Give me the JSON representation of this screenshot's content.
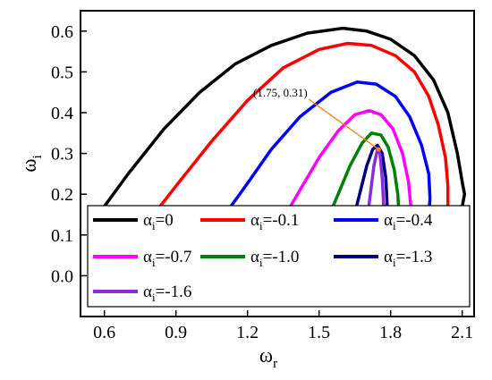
{
  "chart_data": {
    "type": "line",
    "xlabel": {
      "symbol": "ω",
      "sub": "r"
    },
    "ylabel": {
      "symbol": "ω",
      "sub": "i"
    },
    "xlim": [
      0.5,
      2.15
    ],
    "ylim": [
      -0.1,
      0.65
    ],
    "x_ticks": [
      "0.6",
      "0.9",
      "1.2",
      "1.5",
      "1.8",
      "2.1"
    ],
    "y_ticks": [
      "0.0",
      "0.1",
      "0.2",
      "0.3",
      "0.4",
      "0.5",
      "0.6"
    ],
    "grid": false,
    "legend_position": "bottom",
    "annotation": {
      "text": "(1.75, 0.31)",
      "point": [
        1.75,
        0.31
      ]
    },
    "series": [
      {
        "name": "α_i=0",
        "label_symbol": "α",
        "label_sub": "i",
        "label_value": "=0",
        "color": "#000000",
        "points": [
          [
            0.55,
            0.13
          ],
          [
            0.7,
            0.25
          ],
          [
            0.85,
            0.36
          ],
          [
            1.0,
            0.45
          ],
          [
            1.15,
            0.52
          ],
          [
            1.3,
            0.565
          ],
          [
            1.45,
            0.595
          ],
          [
            1.6,
            0.607
          ],
          [
            1.7,
            0.6
          ],
          [
            1.8,
            0.58
          ],
          [
            1.9,
            0.54
          ],
          [
            1.98,
            0.48
          ],
          [
            2.04,
            0.4
          ],
          [
            2.08,
            0.3
          ],
          [
            2.1,
            0.23
          ],
          [
            2.11,
            0.2
          ],
          [
            2.1,
            0.17
          ],
          [
            2.09,
            0.13
          ]
        ]
      },
      {
        "name": "α_i=-0.1",
        "label_symbol": "α",
        "label_sub": "i",
        "label_value": "=-0.1",
        "color": "#ff0000",
        "points": [
          [
            0.78,
            0.13
          ],
          [
            0.9,
            0.22
          ],
          [
            1.05,
            0.33
          ],
          [
            1.2,
            0.43
          ],
          [
            1.35,
            0.51
          ],
          [
            1.5,
            0.555
          ],
          [
            1.62,
            0.57
          ],
          [
            1.72,
            0.565
          ],
          [
            1.82,
            0.54
          ],
          [
            1.9,
            0.5
          ],
          [
            1.96,
            0.44
          ],
          [
            2.0,
            0.37
          ],
          [
            2.03,
            0.29
          ],
          [
            2.04,
            0.22
          ],
          [
            2.04,
            0.17
          ],
          [
            2.03,
            0.13
          ]
        ]
      },
      {
        "name": "α_i=-0.4",
        "label_symbol": "α",
        "label_sub": "i",
        "label_value": "=-0.4",
        "color": "#0000ff",
        "points": [
          [
            1.08,
            0.13
          ],
          [
            1.18,
            0.21
          ],
          [
            1.3,
            0.31
          ],
          [
            1.42,
            0.39
          ],
          [
            1.55,
            0.45
          ],
          [
            1.66,
            0.475
          ],
          [
            1.74,
            0.47
          ],
          [
            1.82,
            0.44
          ],
          [
            1.88,
            0.39
          ],
          [
            1.93,
            0.32
          ],
          [
            1.96,
            0.25
          ],
          [
            1.965,
            0.19
          ],
          [
            1.96,
            0.15
          ],
          [
            1.955,
            0.13
          ]
        ]
      },
      {
        "name": "α_i=-0.7",
        "label_symbol": "α",
        "label_sub": "i",
        "label_value": "=-0.7",
        "color": "#ff00ff",
        "points": [
          [
            1.34,
            0.13
          ],
          [
            1.42,
            0.21
          ],
          [
            1.5,
            0.29
          ],
          [
            1.58,
            0.355
          ],
          [
            1.65,
            0.395
          ],
          [
            1.71,
            0.405
          ],
          [
            1.76,
            0.395
          ],
          [
            1.81,
            0.36
          ],
          [
            1.85,
            0.3
          ],
          [
            1.875,
            0.23
          ],
          [
            1.885,
            0.17
          ],
          [
            1.885,
            0.13
          ]
        ]
      },
      {
        "name": "α_i=-1.0",
        "label_symbol": "α",
        "label_sub": "i",
        "label_value": "=-1.0",
        "color": "#008000",
        "points": [
          [
            1.53,
            0.13
          ],
          [
            1.58,
            0.2
          ],
          [
            1.63,
            0.27
          ],
          [
            1.68,
            0.325
          ],
          [
            1.72,
            0.35
          ],
          [
            1.76,
            0.345
          ],
          [
            1.79,
            0.315
          ],
          [
            1.815,
            0.26
          ],
          [
            1.83,
            0.2
          ],
          [
            1.835,
            0.15
          ],
          [
            1.835,
            0.13
          ]
        ]
      },
      {
        "name": "α_i=-1.3",
        "label_symbol": "α",
        "label_sub": "i",
        "label_value": "=-1.3",
        "color": "#000080",
        "points": [
          [
            1.64,
            0.13
          ],
          [
            1.67,
            0.2
          ],
          [
            1.7,
            0.27
          ],
          [
            1.725,
            0.31
          ],
          [
            1.745,
            0.32
          ],
          [
            1.765,
            0.3
          ],
          [
            1.78,
            0.24
          ],
          [
            1.785,
            0.18
          ],
          [
            1.785,
            0.13
          ]
        ]
      },
      {
        "name": "α_i=-1.6",
        "label_symbol": "α",
        "label_sub": "i",
        "label_value": "=-1.6",
        "color": "#8a2be2",
        "points": [
          [
            1.7,
            0.13
          ],
          [
            1.715,
            0.2
          ],
          [
            1.73,
            0.27
          ],
          [
            1.745,
            0.31
          ],
          [
            1.755,
            0.3
          ],
          [
            1.765,
            0.24
          ],
          [
            1.77,
            0.18
          ],
          [
            1.77,
            0.13
          ]
        ]
      }
    ]
  }
}
